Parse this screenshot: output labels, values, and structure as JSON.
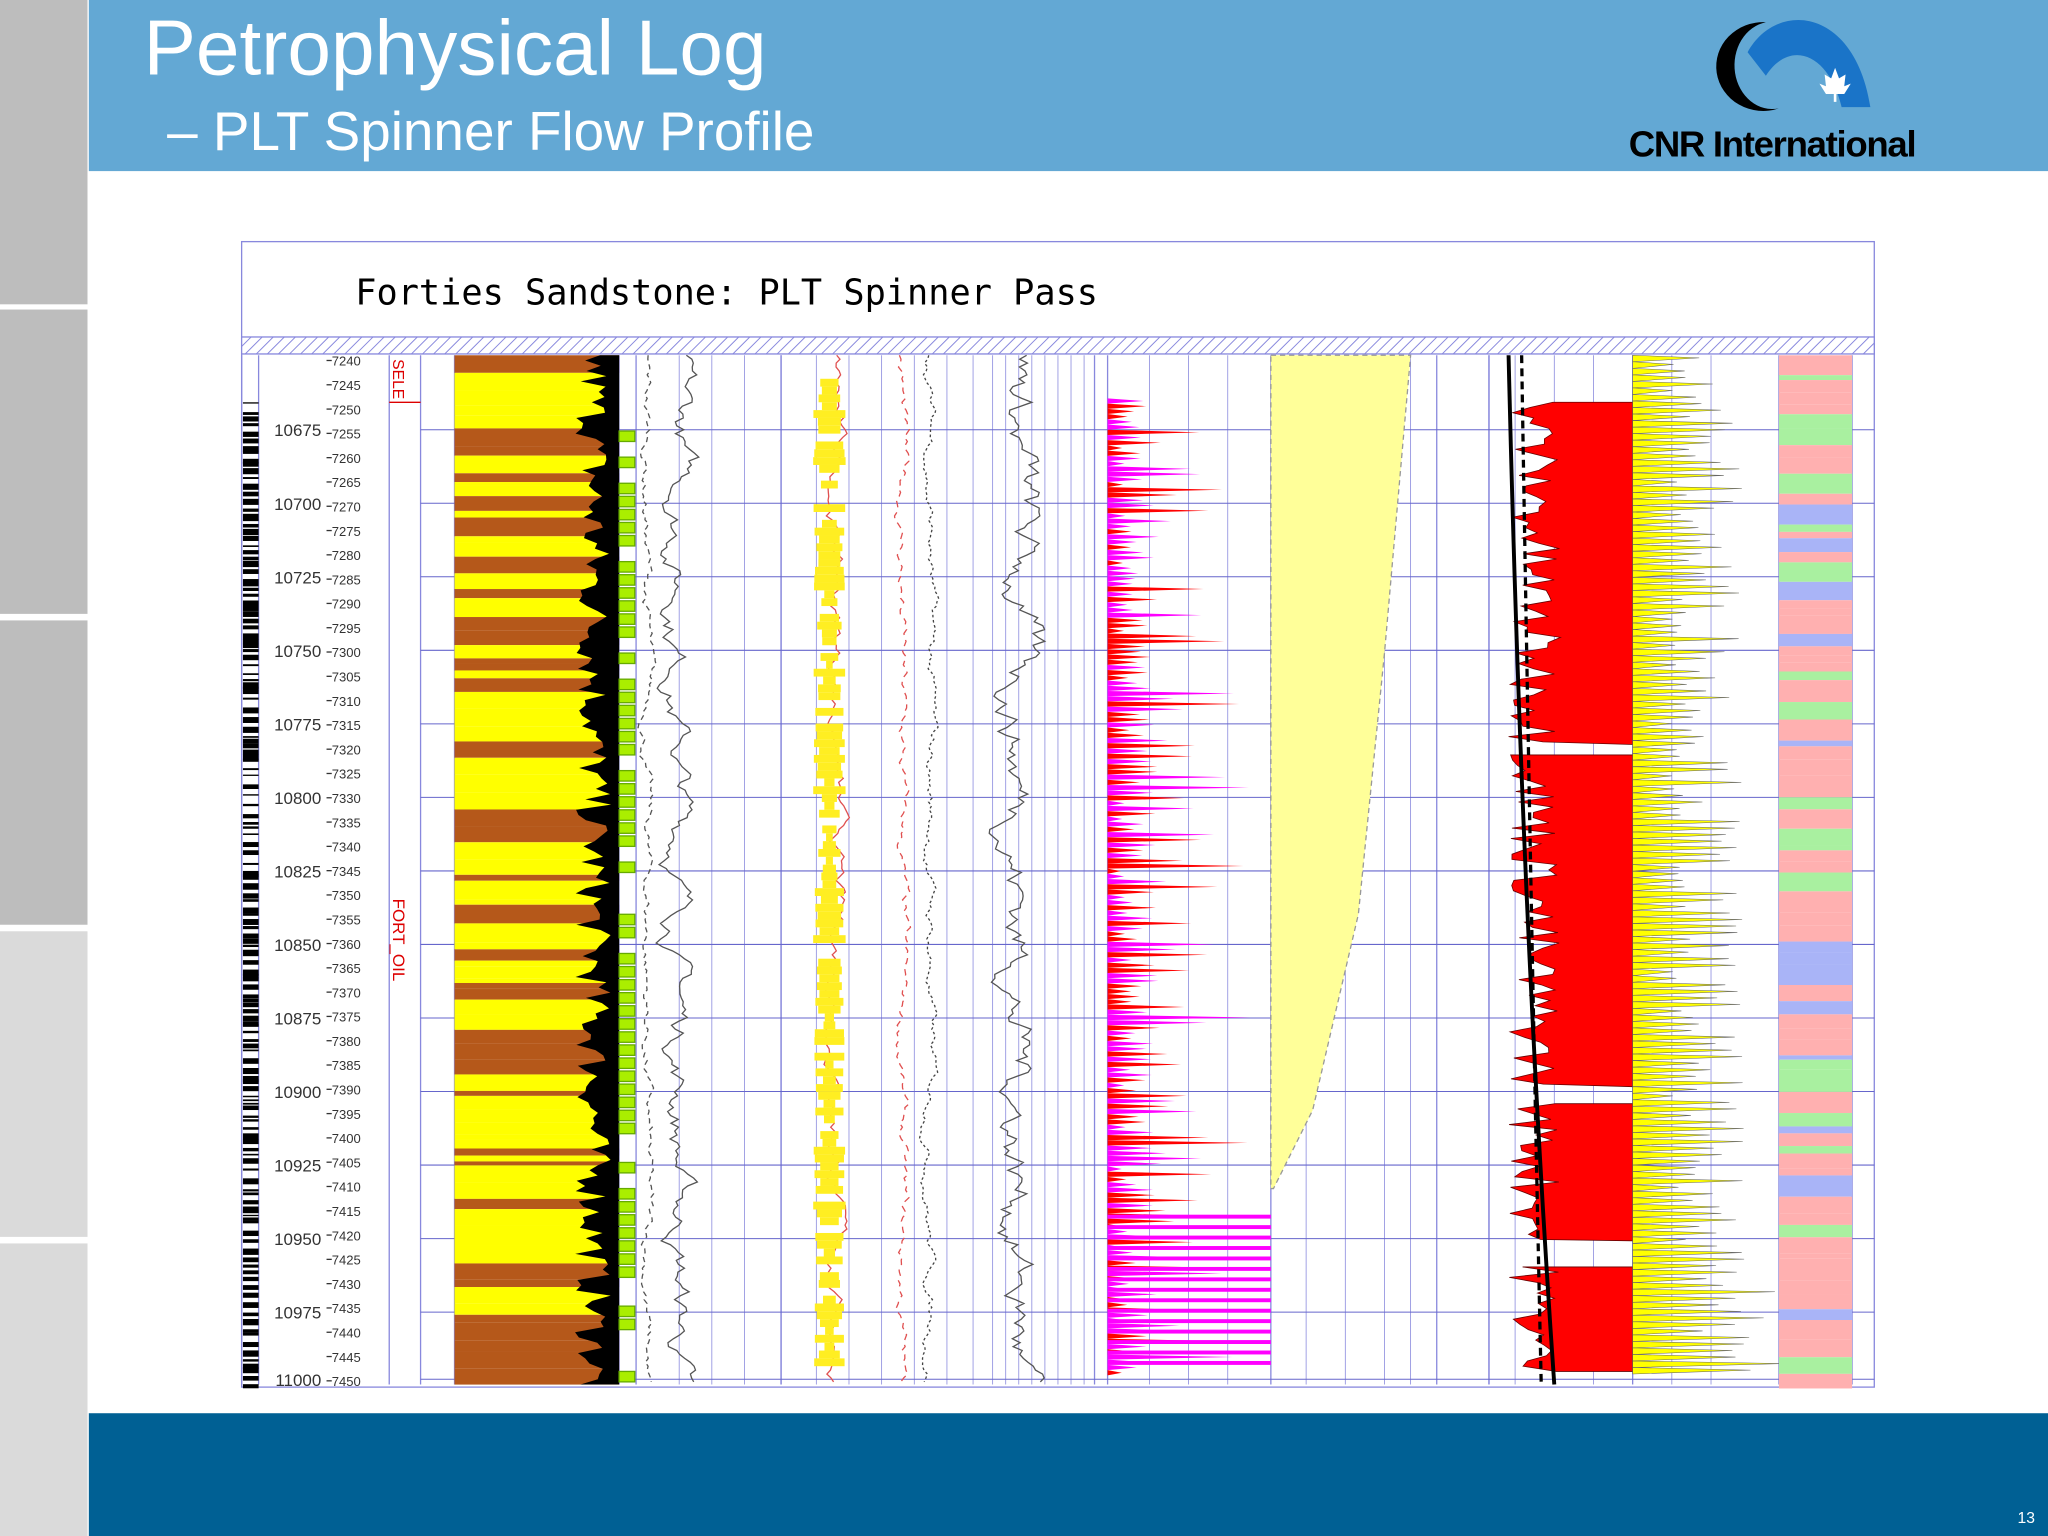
{
  "header": {
    "title": "Petrophysical Log",
    "subtitle": "– PLT Spinner Flow Profile",
    "logo": "CNR International"
  },
  "figure": {
    "title": "Forties Sandstone: PLT Spinner Pass",
    "md_labels": [
      10675,
      10700,
      10725,
      10750,
      10775,
      10800,
      10825,
      10850,
      10875,
      10900,
      10925,
      10950,
      10975,
      11000
    ],
    "tvd_labels": [
      7240,
      7245,
      7250,
      7255,
      7260,
      7265,
      7270,
      7275,
      7280,
      7285,
      7290,
      7295,
      7300,
      7305,
      7310,
      7315,
      7320,
      7325,
      7330,
      7335,
      7340,
      7345,
      7350,
      7355,
      7360,
      7365,
      7370,
      7375,
      7380,
      7385,
      7390,
      7395,
      7400,
      7405,
      7410,
      7415,
      7420,
      7425,
      7430,
      7435,
      7440,
      7445,
      7450
    ],
    "zones": [
      "SELE",
      "FORT_OIL"
    ]
  },
  "footer": {
    "page_number": "13"
  }
}
